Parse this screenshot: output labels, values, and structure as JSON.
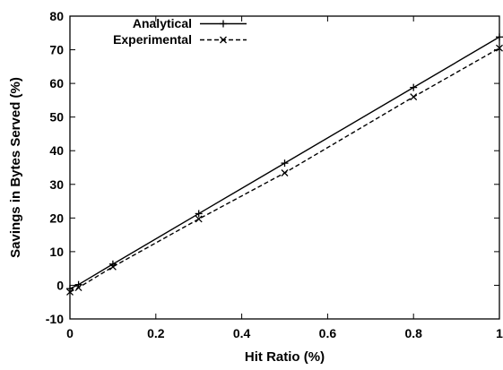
{
  "chart_data": {
    "type": "line",
    "title": "",
    "xlabel": "Hit Ratio (%)",
    "ylabel": "Savings in Bytes Served (%)",
    "xlim": [
      0,
      1
    ],
    "ylim": [
      -10,
      80
    ],
    "xticks": [
      0,
      0.2,
      0.4,
      0.6,
      0.8,
      1
    ],
    "xtick_labels": [
      "0",
      "0.2",
      "0.4",
      "0.6",
      "0.8",
      "1"
    ],
    "yticks": [
      -10,
      0,
      10,
      20,
      30,
      40,
      50,
      60,
      70,
      80
    ],
    "ytick_labels": [
      "-10",
      "0",
      "10",
      "20",
      "30",
      "40",
      "50",
      "60",
      "70",
      "80"
    ],
    "grid": false,
    "legend_position": "top-left",
    "series": [
      {
        "name": "Analytical",
        "line_style": "solid",
        "marker": "plus",
        "color": "#000000",
        "x": [
          0,
          0.02,
          0.1,
          0.3,
          0.5,
          0.8,
          1
        ],
        "y": [
          -1,
          0.2,
          6.3,
          21.3,
          36.3,
          58.8,
          73.8
        ]
      },
      {
        "name": "Experimental",
        "line_style": "dashed",
        "marker": "cross",
        "color": "#000000",
        "x": [
          0,
          0.02,
          0.1,
          0.3,
          0.5,
          0.8,
          1
        ],
        "y": [
          -2,
          -0.7,
          5.5,
          19.7,
          33.4,
          56,
          70.5
        ]
      }
    ]
  }
}
